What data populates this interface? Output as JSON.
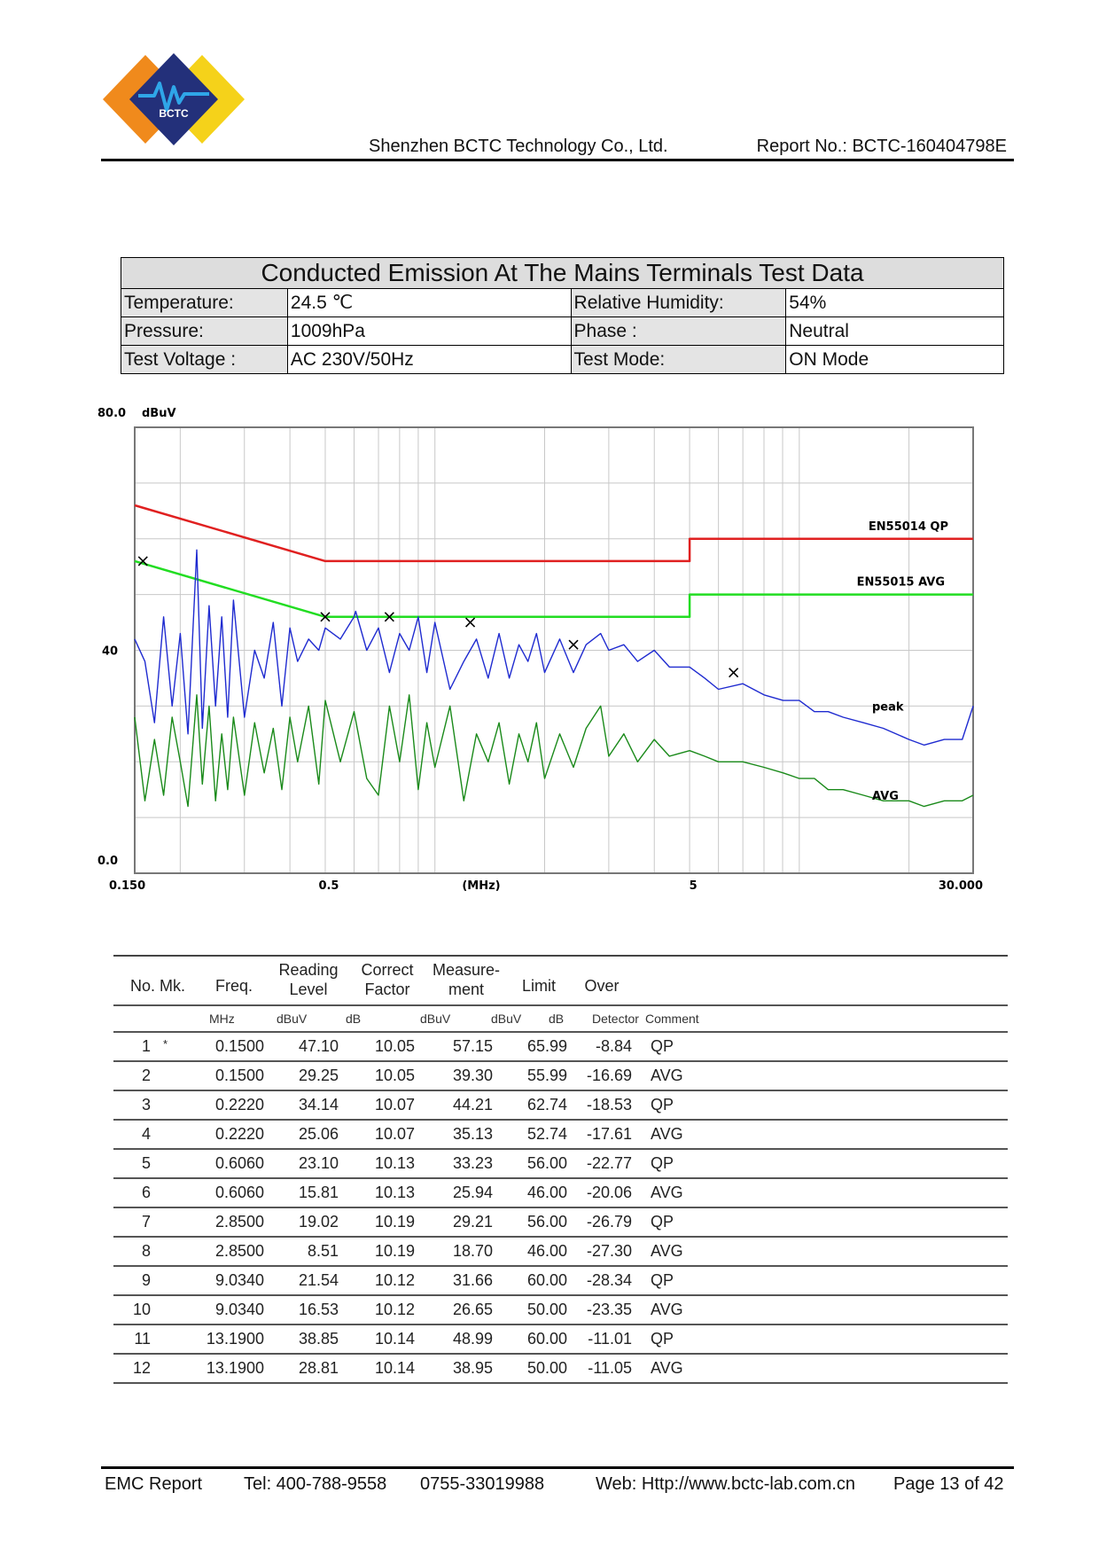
{
  "header": {
    "logo_text": "BCTC",
    "company": "Shenzhen BCTC Technology Co., Ltd.",
    "report_no": "Report No.: BCTC-160404798E"
  },
  "conditions": {
    "title": "Conducted Emission At The Mains Terminals Test Data",
    "rows": [
      {
        "label1": "Temperature:",
        "value1": "24.5 ℃",
        "label2": "Relative Humidity:",
        "value2": "54%"
      },
      {
        "label1": "Pressure:",
        "value1": "1009hPa",
        "label2": "Phase :",
        "value2": "Neutral"
      },
      {
        "label1": "Test Voltage :",
        "value1": "AC 230V/50Hz",
        "label2": "Test Mode:",
        "value2": "ON Mode"
      }
    ]
  },
  "chart_data": {
    "type": "line",
    "x_scale": "log",
    "xlim": [
      0.15,
      30
    ],
    "ylim": [
      0,
      80
    ],
    "ylabel": "dBuV",
    "xlabel": "(MHz)",
    "y_ticks": [
      "80.0",
      "40",
      "0.0"
    ],
    "x_ticks": [
      {
        "value": 0.15,
        "label": "0.150"
      },
      {
        "value": 0.5,
        "label": "0.5"
      },
      {
        "value": 5,
        "label": "5"
      },
      {
        "value": 30,
        "label": "30.000"
      }
    ],
    "grid": true,
    "series": [
      {
        "name": "EN55014 QP",
        "color": "#e02020",
        "kind": "limit",
        "x": [
          0.15,
          0.5,
          0.5,
          5,
          5,
          30
        ],
        "y": [
          66,
          56,
          56,
          56,
          60,
          60
        ]
      },
      {
        "name": "EN55015 AVG",
        "color": "#22dd22",
        "kind": "limit",
        "x": [
          0.15,
          0.5,
          0.5,
          5,
          5,
          30
        ],
        "y": [
          56,
          46,
          46,
          46,
          50,
          50
        ]
      },
      {
        "name": "peak",
        "color": "#1f2bd0",
        "kind": "trace",
        "x": [
          0.15,
          0.16,
          0.17,
          0.18,
          0.19,
          0.2,
          0.21,
          0.222,
          0.23,
          0.24,
          0.25,
          0.26,
          0.27,
          0.28,
          0.3,
          0.32,
          0.34,
          0.36,
          0.38,
          0.4,
          0.42,
          0.45,
          0.48,
          0.5,
          0.55,
          0.6,
          0.606,
          0.65,
          0.7,
          0.75,
          0.8,
          0.85,
          0.9,
          0.95,
          1.0,
          1.1,
          1.2,
          1.3,
          1.4,
          1.5,
          1.6,
          1.7,
          1.8,
          1.9,
          2.0,
          2.2,
          2.4,
          2.6,
          2.85,
          3.0,
          3.3,
          3.6,
          4.0,
          4.4,
          5.0,
          5.5,
          6.0,
          7.0,
          8.0,
          9.03,
          10.0,
          11.0,
          12.0,
          13.19,
          15.0,
          17.0,
          20.0,
          22.0,
          25.0,
          28.0,
          30.0
        ],
        "y": [
          42,
          38,
          27,
          46,
          30,
          43,
          25,
          58,
          26,
          48,
          30,
          46,
          28,
          49,
          28,
          40,
          35,
          45,
          30,
          44,
          38,
          42,
          40,
          44,
          42,
          46,
          47,
          40,
          44,
          36,
          43,
          40,
          46,
          36,
          45,
          33,
          38,
          42,
          35,
          43,
          35,
          41,
          38,
          43,
          36,
          42,
          36,
          41,
          43,
          40,
          41,
          38,
          40,
          37,
          37,
          35,
          33,
          34,
          32,
          31,
          31,
          29,
          29,
          28,
          27,
          26,
          24,
          23,
          24,
          24,
          30
        ]
      },
      {
        "name": "AVG",
        "color": "#1a8a1a",
        "kind": "trace",
        "x": [
          0.15,
          0.16,
          0.17,
          0.18,
          0.19,
          0.2,
          0.21,
          0.222,
          0.23,
          0.24,
          0.25,
          0.26,
          0.27,
          0.28,
          0.3,
          0.32,
          0.34,
          0.36,
          0.38,
          0.4,
          0.42,
          0.45,
          0.48,
          0.5,
          0.55,
          0.6,
          0.65,
          0.7,
          0.75,
          0.8,
          0.85,
          0.9,
          0.95,
          1.0,
          1.1,
          1.2,
          1.3,
          1.4,
          1.5,
          1.6,
          1.7,
          1.8,
          1.9,
          2.0,
          2.2,
          2.4,
          2.6,
          2.85,
          3.0,
          3.3,
          3.6,
          4.0,
          4.4,
          5.0,
          5.5,
          6.0,
          7.0,
          8.0,
          9.03,
          10.0,
          11.0,
          12.0,
          13.19,
          15.0,
          17.0,
          20.0,
          22.0,
          25.0,
          28.0,
          30.0
        ],
        "y": [
          28,
          13,
          24,
          14,
          28,
          20,
          12,
          32,
          16,
          30,
          13,
          25,
          15,
          28,
          14,
          27,
          18,
          26,
          15,
          28,
          20,
          30,
          16,
          31,
          20,
          29,
          17,
          14,
          30,
          20,
          32,
          15,
          27,
          19,
          30,
          13,
          25,
          20,
          27,
          16,
          25,
          20,
          27,
          17,
          25,
          19,
          26,
          30,
          21,
          25,
          20,
          24,
          21,
          22,
          21,
          20,
          20,
          19,
          18,
          17,
          17,
          15,
          15,
          14,
          13,
          13,
          12,
          13,
          13,
          14
        ]
      }
    ],
    "markers": [
      {
        "x": 0.158,
        "y": 56
      },
      {
        "x": 0.5,
        "y": 46
      },
      {
        "x": 0.75,
        "y": 46
      },
      {
        "x": 1.25,
        "y": 45
      },
      {
        "x": 2.4,
        "y": 41
      },
      {
        "x": 6.6,
        "y": 36
      }
    ],
    "annotations": [
      "EN55014 QP",
      "EN55015 AVG",
      "peak",
      "AVG"
    ]
  },
  "results": {
    "headers": [
      {
        "key": "no",
        "text": "No. Mk."
      },
      {
        "key": "freq",
        "text": "Freq."
      },
      {
        "key": "reading",
        "text": "Reading\nLevel"
      },
      {
        "key": "factor",
        "text": "Correct\nFactor"
      },
      {
        "key": "measure",
        "text": "Measure-\nment"
      },
      {
        "key": "limit",
        "text": "Limit"
      },
      {
        "key": "over",
        "text": "Over"
      }
    ],
    "units": [
      "MHz",
      "dBuV",
      "dB",
      "dBuV",
      "dBuV",
      "dB",
      "Detector",
      "Comment"
    ],
    "rows": [
      {
        "no": "1",
        "mk": "*",
        "freq": "0.1500",
        "reading": "47.10",
        "factor": "10.05",
        "measure": "57.15",
        "limit": "65.99",
        "over": "-8.84",
        "detector": "QP",
        "comment": ""
      },
      {
        "no": "2",
        "mk": "",
        "freq": "0.1500",
        "reading": "29.25",
        "factor": "10.05",
        "measure": "39.30",
        "limit": "55.99",
        "over": "-16.69",
        "detector": "AVG",
        "comment": ""
      },
      {
        "no": "3",
        "mk": "",
        "freq": "0.2220",
        "reading": "34.14",
        "factor": "10.07",
        "measure": "44.21",
        "limit": "62.74",
        "over": "-18.53",
        "detector": "QP",
        "comment": ""
      },
      {
        "no": "4",
        "mk": "",
        "freq": "0.2220",
        "reading": "25.06",
        "factor": "10.07",
        "measure": "35.13",
        "limit": "52.74",
        "over": "-17.61",
        "detector": "AVG",
        "comment": ""
      },
      {
        "no": "5",
        "mk": "",
        "freq": "0.6060",
        "reading": "23.10",
        "factor": "10.13",
        "measure": "33.23",
        "limit": "56.00",
        "over": "-22.77",
        "detector": "QP",
        "comment": ""
      },
      {
        "no": "6",
        "mk": "",
        "freq": "0.6060",
        "reading": "15.81",
        "factor": "10.13",
        "measure": "25.94",
        "limit": "46.00",
        "over": "-20.06",
        "detector": "AVG",
        "comment": ""
      },
      {
        "no": "7",
        "mk": "",
        "freq": "2.8500",
        "reading": "19.02",
        "factor": "10.19",
        "measure": "29.21",
        "limit": "56.00",
        "over": "-26.79",
        "detector": "QP",
        "comment": ""
      },
      {
        "no": "8",
        "mk": "",
        "freq": "2.8500",
        "reading": "8.51",
        "factor": "10.19",
        "measure": "18.70",
        "limit": "46.00",
        "over": "-27.30",
        "detector": "AVG",
        "comment": ""
      },
      {
        "no": "9",
        "mk": "",
        "freq": "9.0340",
        "reading": "21.54",
        "factor": "10.12",
        "measure": "31.66",
        "limit": "60.00",
        "over": "-28.34",
        "detector": "QP",
        "comment": ""
      },
      {
        "no": "10",
        "mk": "",
        "freq": "9.0340",
        "reading": "16.53",
        "factor": "10.12",
        "measure": "26.65",
        "limit": "50.00",
        "over": "-23.35",
        "detector": "AVG",
        "comment": ""
      },
      {
        "no": "11",
        "mk": "",
        "freq": "13.1900",
        "reading": "38.85",
        "factor": "10.14",
        "measure": "48.99",
        "limit": "60.00",
        "over": "-11.01",
        "detector": "QP",
        "comment": ""
      },
      {
        "no": "12",
        "mk": "",
        "freq": "13.1900",
        "reading": "28.81",
        "factor": "10.14",
        "measure": "38.95",
        "limit": "50.00",
        "over": "-11.05",
        "detector": "AVG",
        "comment": ""
      }
    ]
  },
  "footer": {
    "left": "EMC Report",
    "tel": "Tel: 400-788-9558",
    "tel2": "0755-33019988",
    "web": "Web: Http://www.bctc-lab.com.cn",
    "page": "Page 13 of 42"
  }
}
